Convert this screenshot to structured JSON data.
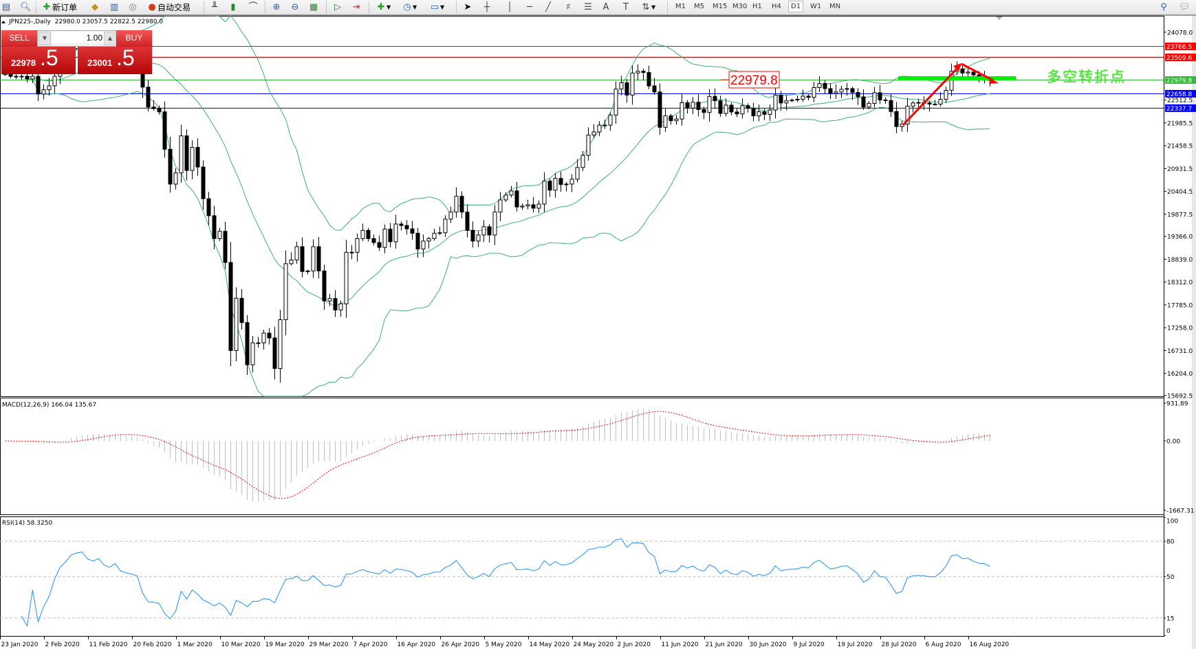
{
  "toolbar": {
    "new_order_label": "新订单",
    "auto_trading_label": "自动交易",
    "icons_left": [
      "window-list-icon",
      "zoom-preview-icon"
    ],
    "icons_mid": [
      "history-center-icon",
      "market-watch-icon",
      "signal-icon"
    ],
    "icons_chart": [
      "bar-chart-icon",
      "candlestick-icon",
      "line-chart-icon",
      "zoom-in-icon",
      "zoom-out-icon",
      "tile-windows-icon",
      "auto-scroll-icon",
      "chart-shift-icon",
      "indicators-icon",
      "periods-icon",
      "templates-icon"
    ],
    "icons_draw": [
      "cursor-icon",
      "crosshair-icon",
      "vertical-line-icon",
      "horizontal-line-icon",
      "trendline-icon",
      "fibonacci-icon",
      "fibo-fan-icon",
      "text-icon",
      "text-label-icon",
      "arrows-icon"
    ],
    "timeframes": [
      "M1",
      "M5",
      "M15",
      "M30",
      "H1",
      "H4",
      "D1",
      "W1",
      "MN"
    ],
    "selected_timeframe": "D1"
  },
  "chart": {
    "header": "JPN225-,Daily  22980.0 23057.5 22822.5 22980.0",
    "symbol": "JPN225-",
    "timeframe": "Daily",
    "ohlc": {
      "open": 22980.0,
      "high": 23057.5,
      "low": 22822.5,
      "close": 22980.0
    }
  },
  "trade_panel": {
    "sell_label": "SELL",
    "buy_label": "BUY",
    "volume": "1.00",
    "sell_price_main": "22978",
    "sell_price_frac": ".5",
    "buy_price_main": "23001",
    "buy_price_frac": ".5"
  },
  "annotations": {
    "price_label": "22979.8",
    "text": "多空转折点",
    "text_color": "#44ee22"
  },
  "chart_data": {
    "type": "candlestick",
    "x_labels": [
      "23 Jan 2020",
      "2 Feb 2020",
      "11 Feb 2020",
      "20 Feb 2020",
      "1 Mar 2020",
      "10 Mar 2020",
      "19 Mar 2020",
      "29 Mar 2020",
      "7 Apr 2020",
      "16 Apr 2020",
      "26 Apr 2020",
      "5 May 2020",
      "14 May 2020",
      "24 May 2020",
      "2 Jun 2020",
      "11 Jun 2020",
      "21 Jun 2020",
      "30 Jun 2020",
      "9 Jul 2020",
      "19 Jul 2020",
      "28 Jul 2020",
      "6 Aug 2020",
      "16 Aug 2020"
    ],
    "price_ticks": [
      "24078.0",
      "22512.5",
      "21985.5",
      "21458.5",
      "20931.5",
      "20404.5",
      "19877.5",
      "19366.0",
      "18839.0",
      "18312.0",
      "17785.0",
      "17258.0",
      "16731.0",
      "16204.0",
      "15692.5"
    ],
    "price_range": [
      15692.5,
      24078.0
    ],
    "closes": [
      23100,
      23060,
      23050,
      23060,
      23000,
      23060,
      22650,
      22750,
      22840,
      23060,
      23300,
      23450,
      23700,
      23800,
      23850,
      23700,
      23650,
      23750,
      23600,
      23550,
      23680,
      23500,
      23450,
      23420,
      23380,
      22810,
      22350,
      22315,
      22240,
      21377,
      20573,
      20830,
      21686,
      20888,
      21420,
      20967,
      20236,
      19843,
      19315,
      19483,
      18764,
      16730,
      17938,
      17376,
      16403,
      16909,
      16909,
      17134,
      17022,
      16319,
      17443,
      18736,
      18820,
      19129,
      18556,
      18567,
      19129,
      18567,
      17876,
      17932,
      17668,
      17808,
      18999,
      19000,
      19315,
      19505,
      19315,
      19224,
      19112,
      19534,
      19242,
      19652,
      19618,
      19540,
      19438,
      19073,
      19258,
      19315,
      19438,
      19450,
      19764,
      19927,
      20292,
      19927,
      19506,
      19258,
      19399,
      19590,
      19399,
      19927,
      20208,
      20320,
      20416,
      20045,
      20067,
      20095,
      20017,
      20112,
      20641,
      20433,
      20703,
      20562,
      20573,
      20686,
      20956,
      21237,
      21703,
      21776,
      21933,
      21933,
      22164,
      22765,
      22911,
      22625,
      23136,
      23176,
      23147,
      22838,
      22698,
      21883,
      22147,
      22035,
      22074,
      22450,
      22327,
      22462,
      22293,
      22226,
      22597,
      22496,
      22203,
      22395,
      22237,
      22192,
      22383,
      22321,
      22147,
      22243,
      22181,
      22282,
      22625,
      22445,
      22495,
      22512,
      22530,
      22602,
      22574,
      22799,
      22895,
      22776,
      22664,
      22698,
      22760,
      22776,
      22687,
      22586,
      22350,
      22434,
      22681,
      22513,
      22501,
      22248,
      21900,
      21956,
      22372,
      22445,
      22456,
      22445,
      22417,
      22417,
      22529,
      22737,
      23176,
      23232,
      23136,
      23158,
      23091,
      23046,
      23035,
      22980
    ],
    "bollinger": {
      "period": 20,
      "deviation": 2,
      "color": "#3cb371"
    },
    "levels": [
      {
        "value": "23766.5",
        "color": "#ff0000"
      },
      {
        "value": "23509.6",
        "color": "#ff0000"
      },
      {
        "value": "22979.8",
        "color": "#33bb33"
      },
      {
        "value": "22658.8",
        "color": "#0000ff"
      },
      {
        "value": "22337.7",
        "color": "#0000ff"
      }
    ],
    "macd": {
      "label": "MACD(12,26,9) 166.04 135.67",
      "params": [
        12,
        26,
        9
      ],
      "ticks": [
        "931.89",
        "0.00",
        "-1667.31"
      ],
      "range": [
        -1667.31,
        931.89
      ],
      "histogram_color": "#c0c0c0",
      "signal_color": "#ff0000"
    },
    "rsi": {
      "label": "RSI(14) 58.3250",
      "period": 14,
      "ticks": [
        "100",
        "80",
        "50",
        "15",
        "0"
      ],
      "levels": [
        80,
        50,
        15
      ],
      "color": "#1e90ff"
    }
  }
}
